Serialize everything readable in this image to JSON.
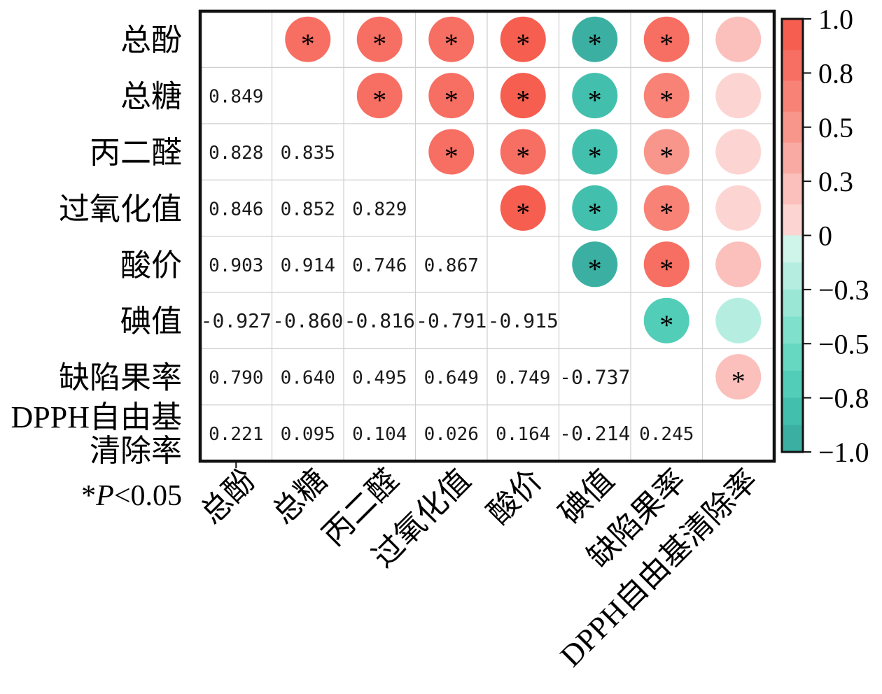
{
  "chart_data": {
    "type": "heatmap",
    "variables": [
      "总酚",
      "总糖",
      "丙二醛",
      "过氧化值",
      "酸价",
      "碘值",
      "缺陷果率",
      "DPPH自由基清除率"
    ],
    "row_labels": [
      [
        "总酚"
      ],
      [
        "总糖"
      ],
      [
        "丙二醛"
      ],
      [
        "过氧化值"
      ],
      [
        "酸价"
      ],
      [
        "碘值"
      ],
      [
        "缺陷果率"
      ],
      [
        "DPPH自由基",
        "清除率"
      ]
    ],
    "lower_triangle_values": [
      [
        "0.849",
        "0.828",
        "0.846",
        "0.903",
        "-0.927",
        "0.790",
        "0.221"
      ],
      [
        "0.835",
        "0.852",
        "0.914",
        "-0.860",
        "0.640",
        "0.095"
      ],
      [
        "0.829",
        "0.746",
        "-0.816",
        "0.495",
        "0.104"
      ],
      [
        "0.867",
        "-0.791",
        "0.649",
        "0.026"
      ],
      [
        "-0.915",
        "0.749",
        "0.164"
      ],
      [
        "-0.737",
        "-0.214"
      ],
      [
        "0.245"
      ]
    ],
    "significant_pairs": [
      [
        0,
        1
      ],
      [
        0,
        2
      ],
      [
        0,
        3
      ],
      [
        0,
        4
      ],
      [
        0,
        5
      ],
      [
        0,
        6
      ],
      [
        1,
        2
      ],
      [
        1,
        3
      ],
      [
        1,
        4
      ],
      [
        1,
        5
      ],
      [
        1,
        6
      ],
      [
        2,
        3
      ],
      [
        2,
        4
      ],
      [
        2,
        5
      ],
      [
        2,
        6
      ],
      [
        3,
        4
      ],
      [
        3,
        5
      ],
      [
        3,
        6
      ],
      [
        4,
        5
      ],
      [
        4,
        6
      ],
      [
        5,
        6
      ],
      [
        6,
        7
      ]
    ],
    "significance_marker": "*",
    "significance_note": {
      "prefix": "*",
      "italic": "P",
      "suffix": "<0.05"
    },
    "colorbar": {
      "range": [
        -1.0,
        1.0
      ],
      "tick_labels": [
        "1.0",
        "0.8",
        "0.5",
        "0.3",
        "0",
        "−0.3",
        "−0.5",
        "−0.8",
        "−1.0"
      ],
      "positive_colors": [
        "#fcd5d3",
        "#fbc0bb",
        "#f9aba3",
        "#f9968c",
        "#f88276",
        "#f76e62",
        "#f65e50"
      ],
      "negative_colors": [
        "#cff4e9",
        "#b5eee0",
        "#9ae7d6",
        "#7fe0cc",
        "#66d8c1",
        "#52cdb7",
        "#42c0ad",
        "#3bb0a2"
      ]
    },
    "grid": true,
    "legend_position": "right"
  }
}
